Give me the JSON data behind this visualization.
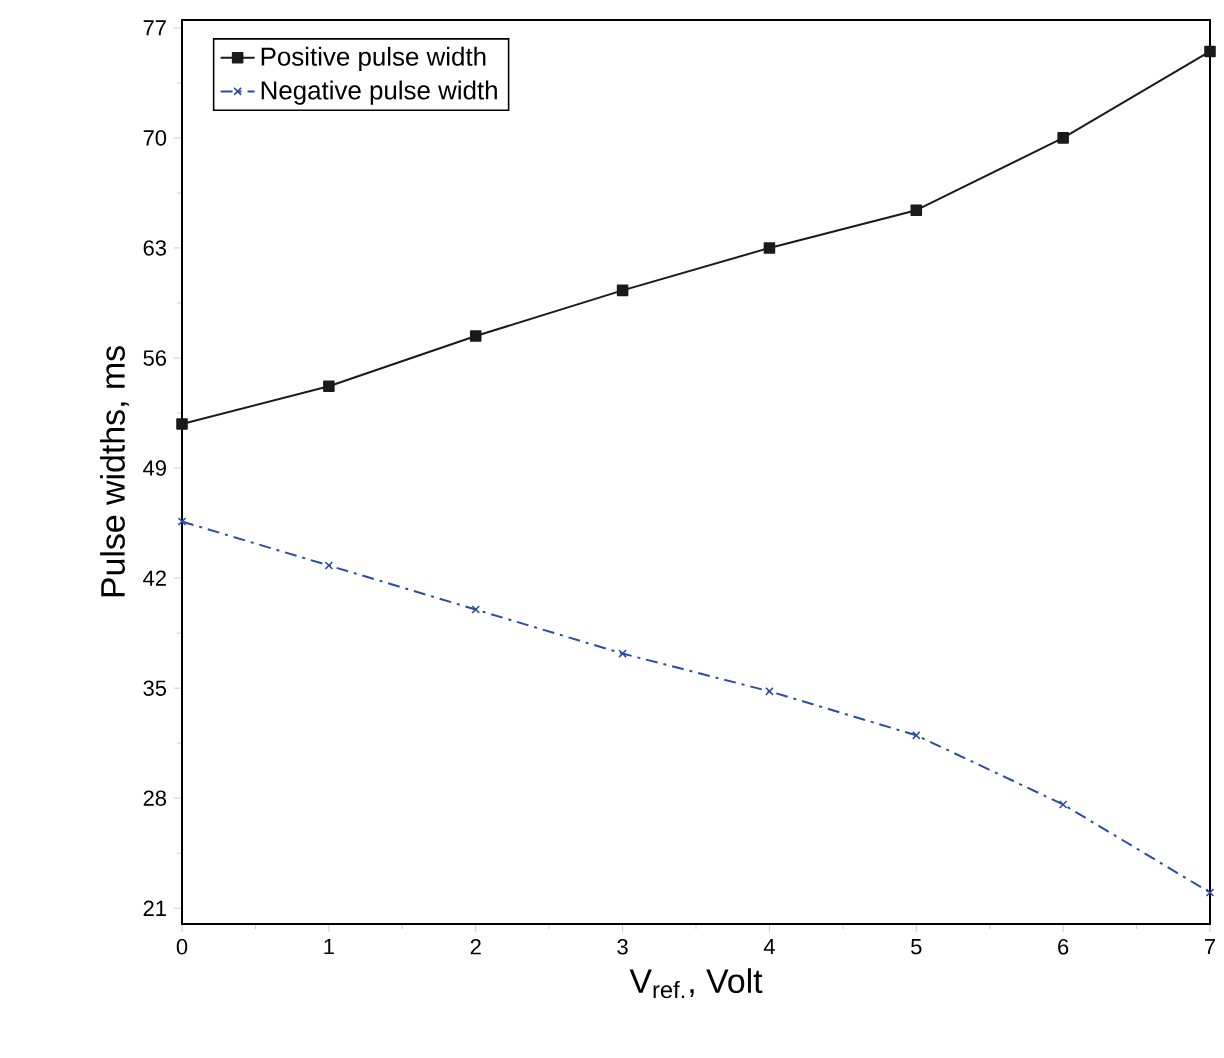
{
  "chart_data": {
    "type": "line",
    "xlabel": "V$_{ref.}$, Volt",
    "ylabel": "Pulse widths, ms",
    "x": [
      0,
      1,
      2,
      3,
      4,
      5,
      6,
      7
    ],
    "series": [
      {
        "name": "Positive pulse width",
        "color": "#1a1a1a",
        "marker": "square",
        "line_style": "solid",
        "values": [
          51.8,
          54.2,
          57.4,
          60.3,
          63.0,
          65.4,
          70.0,
          75.5
        ]
      },
      {
        "name": "Negative pulse width",
        "color": "#2b4ba8",
        "marker": "cross",
        "line_style": "dashed",
        "values": [
          45.6,
          42.8,
          40.0,
          37.2,
          34.8,
          32.0,
          27.6,
          22.0
        ]
      }
    ],
    "xlim": [
      0,
      7
    ],
    "ylim": [
      20,
      77.5
    ],
    "xticks": [
      0,
      1,
      2,
      3,
      4,
      5,
      6,
      7
    ],
    "yticks": [
      21,
      28,
      35,
      42,
      49,
      56,
      63,
      70,
      77
    ],
    "legend": "top left",
    "grid": false
  }
}
